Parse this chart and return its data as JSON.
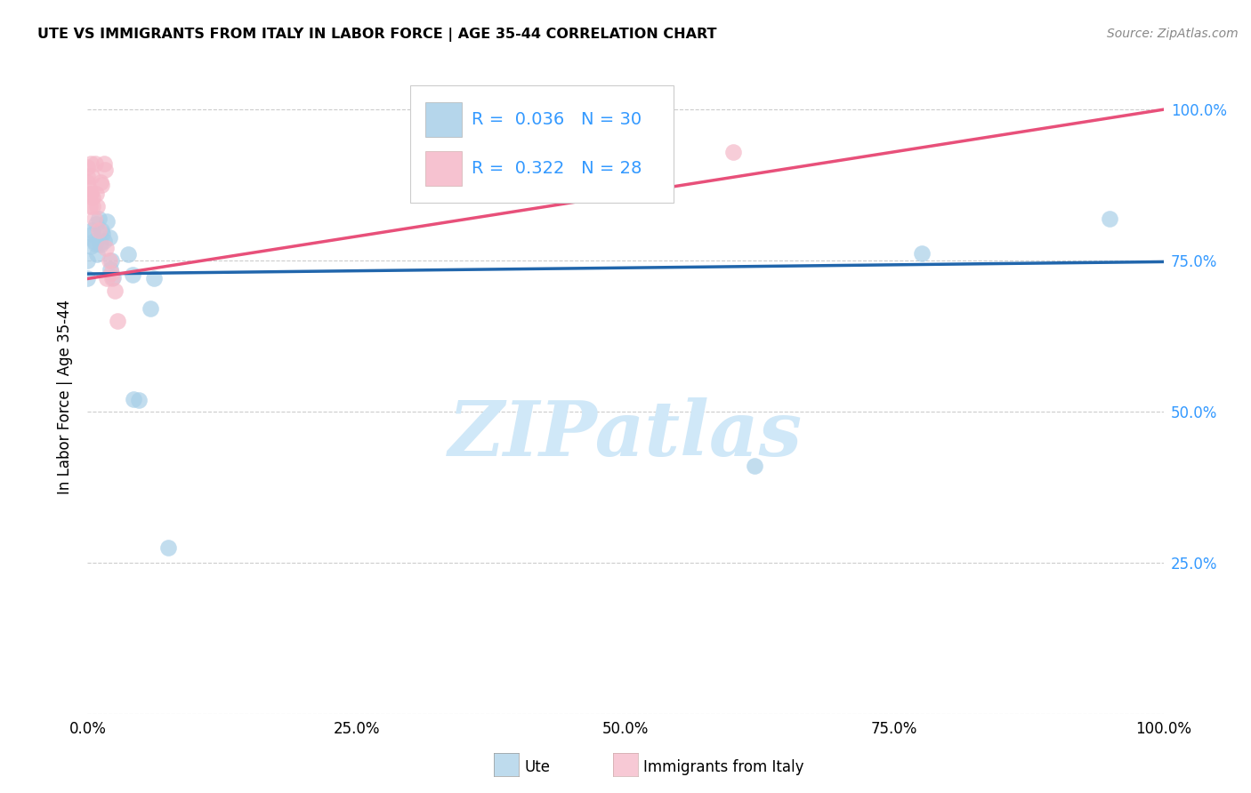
{
  "title": "UTE VS IMMIGRANTS FROM ITALY IN LABOR FORCE | AGE 35-44 CORRELATION CHART",
  "source": "Source: ZipAtlas.com",
  "ylabel": "In Labor Force | Age 35-44",
  "legend_labels": [
    "Ute",
    "Immigrants from Italy"
  ],
  "ute_color": "#a8cfe8",
  "italy_color": "#f5b8c8",
  "ute_line_color": "#2166ac",
  "italy_line_color": "#e8507a",
  "R_ute": 0.036,
  "N_ute": 30,
  "R_italy": 0.322,
  "N_italy": 28,
  "ute_points_x": [
    0.0,
    0.0,
    0.003,
    0.004,
    0.005,
    0.006,
    0.007,
    0.008,
    0.009,
    0.01,
    0.011,
    0.012,
    0.013,
    0.014,
    0.015,
    0.018,
    0.02,
    0.021,
    0.022,
    0.024,
    0.038,
    0.042,
    0.043,
    0.048,
    0.058,
    0.062,
    0.075,
    0.62,
    0.775,
    0.95
  ],
  "ute_points_y": [
    0.72,
    0.75,
    0.773,
    0.8,
    0.795,
    0.782,
    0.778,
    0.81,
    0.76,
    0.82,
    0.78,
    0.776,
    0.8,
    0.795,
    0.782,
    0.815,
    0.788,
    0.736,
    0.75,
    0.722,
    0.76,
    0.727,
    0.52,
    0.519,
    0.67,
    0.72,
    0.275,
    0.41,
    0.762,
    0.82
  ],
  "italy_points_x": [
    0.0,
    0.0,
    0.0,
    0.001,
    0.002,
    0.002,
    0.003,
    0.003,
    0.004,
    0.005,
    0.005,
    0.006,
    0.007,
    0.008,
    0.009,
    0.01,
    0.012,
    0.013,
    0.015,
    0.016,
    0.017,
    0.018,
    0.02,
    0.022,
    0.023,
    0.025,
    0.028,
    0.6
  ],
  "italy_points_y": [
    0.88,
    0.89,
    0.905,
    0.87,
    0.86,
    0.84,
    0.91,
    0.86,
    0.89,
    0.84,
    0.855,
    0.82,
    0.91,
    0.86,
    0.84,
    0.8,
    0.88,
    0.875,
    0.91,
    0.9,
    0.77,
    0.72,
    0.75,
    0.73,
    0.72,
    0.7,
    0.65,
    0.93
  ],
  "ute_line_x": [
    0.0,
    1.0
  ],
  "ute_line_y": [
    0.728,
    0.748
  ],
  "italy_line_x": [
    0.0,
    1.0
  ],
  "italy_line_y": [
    0.72,
    1.0
  ],
  "xlim": [
    0.0,
    1.0
  ],
  "ylim": [
    0.0,
    1.05
  ],
  "xticks": [
    0.0,
    0.25,
    0.5,
    0.75,
    1.0
  ],
  "xticklabels": [
    "0.0%",
    "25.0%",
    "50.0%",
    "75.0%",
    "100.0%"
  ],
  "yticks": [
    0.0,
    0.25,
    0.5,
    0.75,
    1.0
  ],
  "yticks_right": [
    0.25,
    0.5,
    0.75,
    1.0
  ],
  "yticklabels_right": [
    "25.0%",
    "50.0%",
    "75.0%",
    "100.0%"
  ],
  "background_color": "#ffffff",
  "grid_color": "#cccccc",
  "watermark": "ZIPatlas",
  "watermark_color": "#d0e8f8",
  "label_color": "#3399ff"
}
